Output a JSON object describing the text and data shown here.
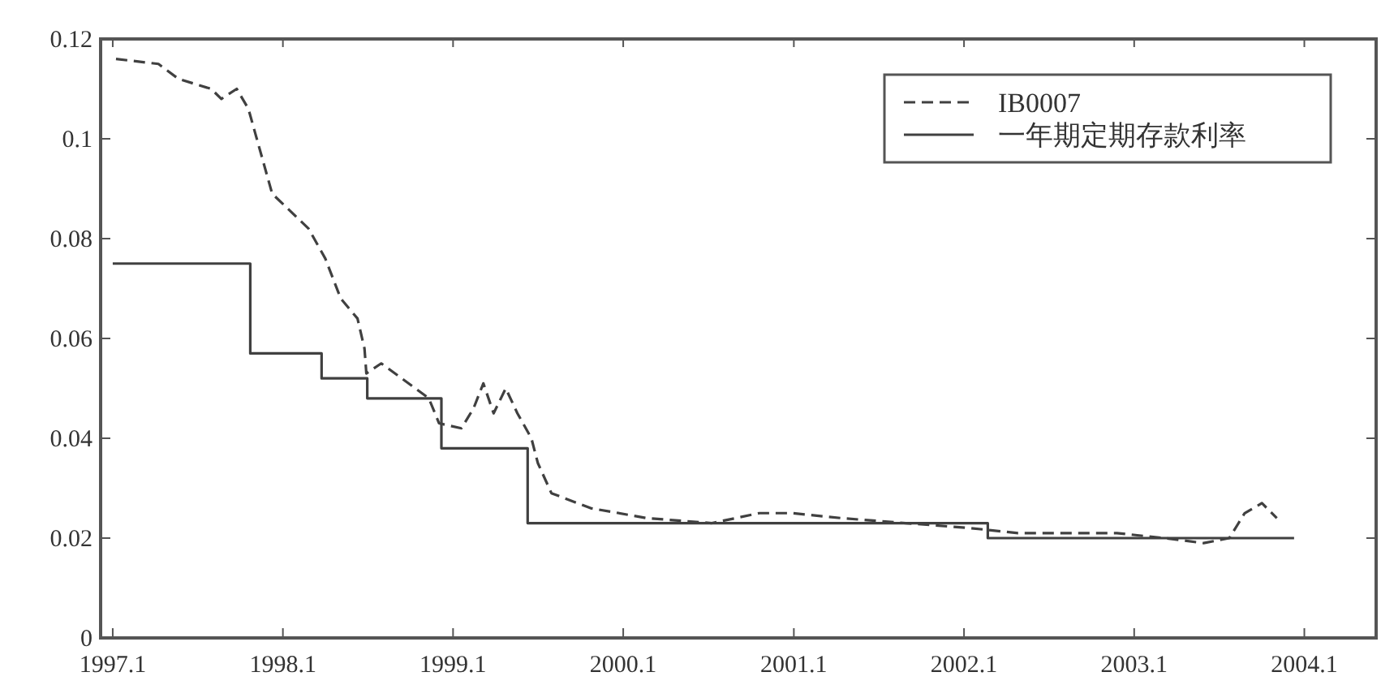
{
  "chart_data": {
    "type": "line",
    "legend": "top right",
    "grid": false,
    "xlim": [
      "1996-12-06",
      "2004-06-03"
    ],
    "ylim": [
      0,
      0.12
    ],
    "xticks": [
      {
        "value": "1997-01",
        "label": "1997.1"
      },
      {
        "value": "1998-01",
        "label": "1998.1"
      },
      {
        "value": "1999-01",
        "label": "1999.1"
      },
      {
        "value": "2000-01",
        "label": "2000.1"
      },
      {
        "value": "2001-01",
        "label": "2001.1"
      },
      {
        "value": "2002-01",
        "label": "2002.1"
      },
      {
        "value": "2003-01",
        "label": "2003.1"
      },
      {
        "value": "2004-01",
        "label": "2004.1"
      }
    ],
    "yticks": [
      0,
      {
        "value": 0.02,
        "label": "0.02"
      },
      {
        "value": 0.04,
        "label": "0.04"
      },
      {
        "value": 0.06,
        "label": "0.06"
      },
      {
        "value": 0.08,
        "label": "0.08"
      },
      {
        "value": 0.1,
        "label": "0.1"
      },
      {
        "value": 0.12,
        "label": "0.12"
      }
    ],
    "series": [
      {
        "name": "IB0007",
        "type": "line",
        "line_style": "dashed",
        "color": "#404040",
        "x": [
          "1997-01-08",
          "1997-04-09",
          "1997-05-22",
          "1997-07-31",
          "1997-08-22",
          "1997-09-24",
          "1997-10-19",
          "1997-11-03",
          "1997-12-09",
          "1998-02-25",
          "1998-04-02",
          "1998-05-05",
          "1998-06-10",
          "1998-06-25",
          "1998-06-29",
          "1998-07-31",
          "1998-09-13",
          "1998-11-10",
          "1998-12-02",
          "1999-01-19",
          "1999-02-14",
          "1999-03-07",
          "1999-03-29",
          "1999-04-24",
          "1999-05-19",
          "1999-06-18",
          "1999-07-02",
          "1999-07-31",
          "1999-10-23",
          "2000-02-21",
          "2000-07-09",
          "2000-10-19",
          "2000-12-28",
          "2001-04-13",
          "2001-08-29",
          "2002-01-15",
          "2002-04-27",
          "2002-11-25",
          "2003-03-07",
          "2003-05-30",
          "2003-07-24",
          "2003-08-26",
          "2003-10-02",
          "2003-11-03"
        ],
        "values": [
          0.116,
          0.115,
          0.112,
          0.11,
          0.108,
          0.11,
          0.106,
          0.101,
          0.089,
          0.082,
          0.076,
          0.068,
          0.064,
          0.058,
          0.053,
          0.055,
          0.052,
          0.048,
          0.043,
          0.042,
          0.046,
          0.051,
          0.045,
          0.05,
          0.045,
          0.04,
          0.035,
          0.029,
          0.026,
          0.024,
          0.023,
          0.025,
          0.025,
          0.024,
          0.023,
          0.022,
          0.021,
          0.021,
          0.02,
          0.019,
          0.02,
          0.025,
          0.027,
          0.024
        ]
      },
      {
        "name": "一年期定期存款利率",
        "type": "step",
        "line_style": "solid",
        "color": "#404040",
        "x": [
          "1997-01-01",
          "1997-10-23",
          "1998-03-25",
          "1998-07-01",
          "1998-12-07",
          "1999-06-10",
          "2002-02-21",
          "2003-12-10"
        ],
        "values": [
          0.075,
          0.057,
          0.052,
          0.048,
          0.038,
          0.023,
          0.02,
          0.02
        ]
      }
    ]
  }
}
